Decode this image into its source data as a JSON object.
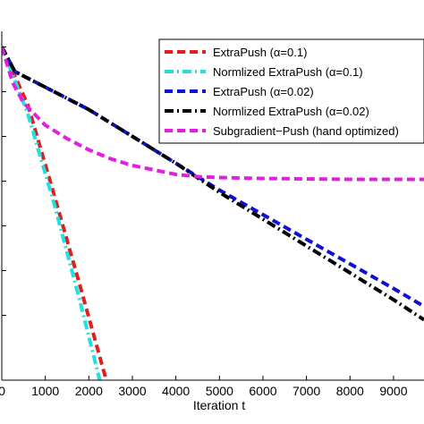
{
  "chart_data": {
    "type": "line",
    "xlabel": "Iteration t",
    "ylabel": "",
    "xlim": [
      0,
      9700
    ],
    "ylim": [
      -7.45,
      0.35
    ],
    "xticks": [
      0,
      1000,
      2000,
      3000,
      4000,
      5000,
      6000,
      7000,
      8000,
      9000
    ],
    "xtick_labels": [
      "0",
      "1000",
      "2000",
      "3000",
      "4000",
      "5000",
      "6000",
      "7000",
      "8000",
      "9000"
    ],
    "yticks": [
      -6,
      -5,
      -4,
      -3,
      -2,
      -1,
      0
    ],
    "ytick_labels": [
      "",
      "",
      "",
      "",
      "",
      "",
      ""
    ],
    "grid": false,
    "legend_position": "top-right",
    "series": [
      {
        "name": "ExtraPush (α=0.1)",
        "color": "#e02020",
        "style": "dashed",
        "x": [
          0,
          600,
          1200,
          1800,
          2400
        ],
        "y": [
          0,
          -1.3,
          -3.3,
          -5.35,
          -7.45
        ]
      },
      {
        "name": "Normlized ExtraPush (α=0.1)",
        "color": "#20e0e0",
        "style": "dashdot",
        "x": [
          0,
          600,
          1200,
          1800,
          2250
        ],
        "y": [
          0,
          -1.5,
          -3.5,
          -5.7,
          -7.45
        ]
      },
      {
        "name": "ExtraPush (α=0.02)",
        "color": "#1010d0",
        "style": "dashed",
        "x": [
          0,
          300,
          1000,
          2000,
          3000,
          4000,
          5000,
          6000,
          7000,
          8000,
          9000,
          9700
        ],
        "y": [
          0,
          -0.55,
          -0.9,
          -1.4,
          -2.0,
          -2.6,
          -3.2,
          -3.75,
          -4.3,
          -4.85,
          -5.4,
          -5.8
        ]
      },
      {
        "name": "Normlized ExtraPush (α=0.02)",
        "color": "#000000",
        "style": "dashdot",
        "x": [
          0,
          300,
          1000,
          2000,
          3000,
          4000,
          5000,
          6000,
          7000,
          8000,
          9000,
          9700
        ],
        "y": [
          0,
          -0.55,
          -0.9,
          -1.4,
          -2.0,
          -2.6,
          -3.25,
          -3.85,
          -4.45,
          -5.05,
          -5.65,
          -6.1
        ]
      },
      {
        "name": "Subgradient−Push (hand optimized)",
        "color": "#e020e0",
        "style": "dashed",
        "x": [
          0,
          250,
          500,
          1000,
          1500,
          2000,
          2500,
          3000,
          3500,
          4000,
          4500,
          5000,
          6000,
          7000,
          8000,
          9000,
          9700
        ],
        "y": [
          0,
          -0.8,
          -1.25,
          -1.75,
          -2.05,
          -2.3,
          -2.5,
          -2.65,
          -2.75,
          -2.85,
          -2.9,
          -2.92,
          -2.94,
          -2.95,
          -2.96,
          -2.96,
          -2.96
        ]
      }
    ]
  }
}
